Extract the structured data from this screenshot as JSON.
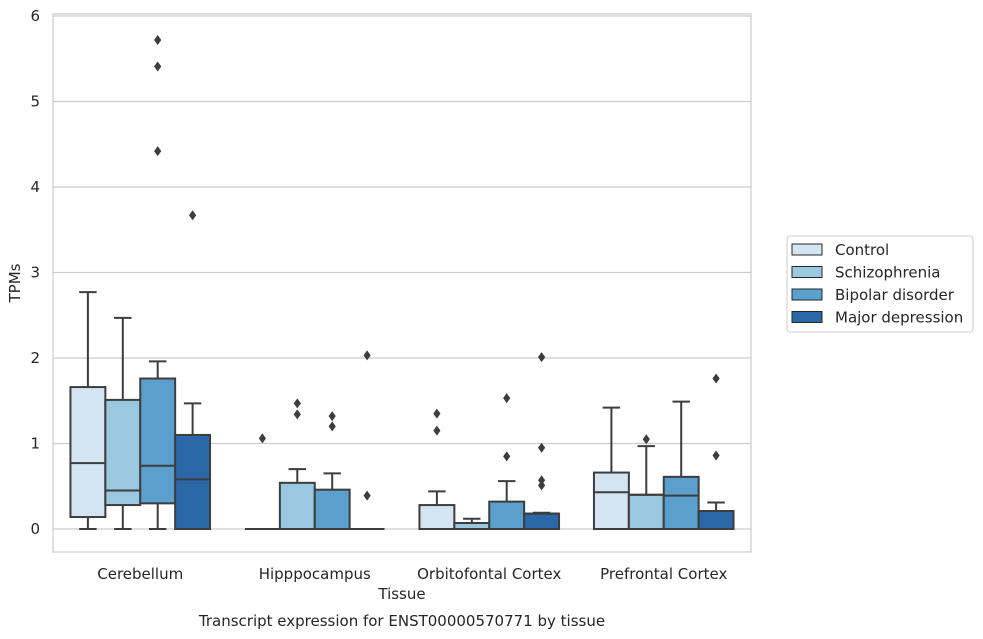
{
  "chart_data": {
    "type": "box",
    "title": "",
    "caption": "Transcript expression for ENST00000570771 by tissue",
    "xlabel": "Tissue",
    "ylabel": "TPMs",
    "ylim": [
      -0.27,
      6.03
    ],
    "yticks": [
      0,
      1,
      2,
      3,
      4,
      5,
      6
    ],
    "grid": "horizontal",
    "legend_position": "right",
    "categories": [
      "Cerebellum",
      "Hipppocampus",
      "Orbitofontal Cortex",
      "Prefrontal Cortex"
    ],
    "series": [
      {
        "name": "Control",
        "color": "#d3e4f3",
        "boxes": [
          {
            "min": 0.0,
            "q1": 0.14,
            "median": 0.77,
            "q3": 1.66,
            "max": 2.77,
            "outliers": []
          },
          {
            "min": 0.0,
            "q1": 0.0,
            "median": 0.0,
            "q3": 0.0,
            "max": 0.0,
            "outliers": [
              1.06
            ]
          },
          {
            "min": 0.0,
            "q1": 0.0,
            "median": 0.0,
            "q3": 0.28,
            "max": 0.44,
            "outliers": [
              1.15,
              1.35
            ]
          },
          {
            "min": 0.0,
            "q1": 0.0,
            "median": 0.43,
            "q3": 0.66,
            "max": 1.42,
            "outliers": []
          }
        ]
      },
      {
        "name": "Schizophrenia",
        "color": "#9ac8e0",
        "boxes": [
          {
            "min": 0.0,
            "q1": 0.28,
            "median": 0.45,
            "q3": 1.51,
            "max": 2.47,
            "outliers": []
          },
          {
            "min": 0.0,
            "q1": 0.0,
            "median": 0.0,
            "q3": 0.54,
            "max": 0.7,
            "outliers": [
              1.34,
              1.47
            ]
          },
          {
            "min": 0.0,
            "q1": 0.0,
            "median": 0.07,
            "q3": 0.07,
            "max": 0.12,
            "outliers": []
          },
          {
            "min": 0.0,
            "q1": 0.0,
            "median": 0.4,
            "q3": 0.4,
            "max": 0.97,
            "outliers": [
              1.05
            ]
          }
        ]
      },
      {
        "name": "Bipolar disorder",
        "color": "#5b9fcd",
        "boxes": [
          {
            "min": 0.0,
            "q1": 0.3,
            "median": 0.74,
            "q3": 1.76,
            "max": 1.96,
            "outliers": [
              4.42,
              5.41,
              5.72
            ]
          },
          {
            "min": 0.0,
            "q1": 0.0,
            "median": 0.0,
            "q3": 0.46,
            "max": 0.65,
            "outliers": [
              1.2,
              1.32
            ]
          },
          {
            "min": 0.0,
            "q1": 0.0,
            "median": 0.0,
            "q3": 0.32,
            "max": 0.56,
            "outliers": [
              0.85,
              1.53
            ]
          },
          {
            "min": 0.0,
            "q1": 0.0,
            "median": 0.39,
            "q3": 0.61,
            "max": 1.49,
            "outliers": []
          }
        ]
      },
      {
        "name": "Major depression",
        "color": "#2a68a8",
        "boxes": [
          {
            "min": 0.0,
            "q1": 0.0,
            "median": 0.58,
            "q3": 1.1,
            "max": 1.47,
            "outliers": [
              3.67
            ]
          },
          {
            "min": 0.0,
            "q1": 0.0,
            "median": 0.0,
            "q3": 0.0,
            "max": 0.0,
            "outliers": [
              0.39,
              2.03
            ]
          },
          {
            "min": 0.0,
            "q1": 0.0,
            "median": 0.18,
            "q3": 0.18,
            "max": 0.19,
            "outliers": [
              0.51,
              0.57,
              0.95,
              2.01
            ]
          },
          {
            "min": 0.0,
            "q1": 0.0,
            "median": 0.21,
            "q3": 0.21,
            "max": 0.31,
            "outliers": [
              0.86,
              1.76
            ]
          }
        ]
      }
    ]
  }
}
